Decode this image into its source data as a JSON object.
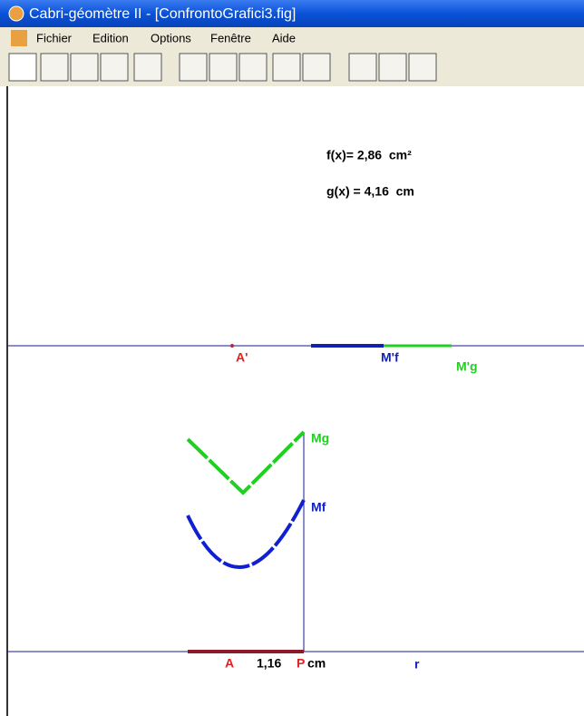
{
  "window": {
    "title": "Cabri-géomètre II - [ConfrontoGrafici3.fig]"
  },
  "menu": [
    "Fichier",
    "Edition",
    "Options",
    "Fenêtre",
    "Aide"
  ],
  "canvas": {
    "measures": [
      "f(x)= 2,86  cm²",
      "g(x) = 4,16  cm"
    ],
    "labels": {
      "a_prime": "A'",
      "m_prime_f": "M'f",
      "m_prime_g": "M'g",
      "mg": "Mg",
      "mf": "Mf",
      "a": "A",
      "length": "1,16",
      "p": "P",
      "unit": "cm",
      "r": "r"
    }
  }
}
